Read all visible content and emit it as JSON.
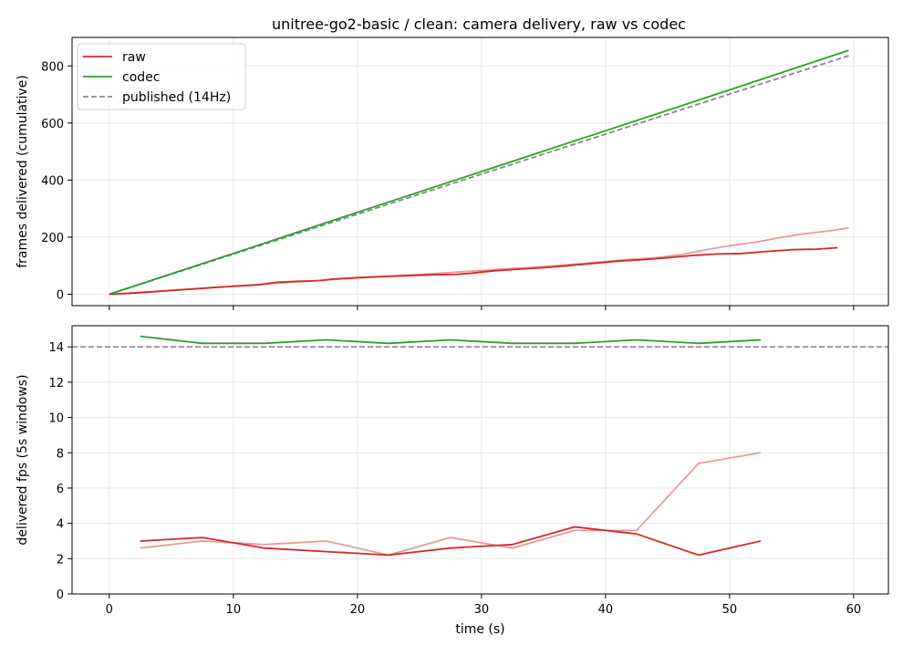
{
  "figure_title": "unitree-go2-basic / clean: camera delivery, raw vs codec",
  "colors": {
    "raw": "#d62728",
    "raw_light": "#e89a9a",
    "codec": "#2ca02c",
    "published": "#888888",
    "grid": "#e6e6e6"
  },
  "chart_data": [
    {
      "type": "line",
      "title": "unitree-go2-basic / clean: camera delivery, raw vs codec",
      "xlabel": "",
      "ylabel": "frames delivered (cumulative)",
      "xlim": [
        -3,
        62.8
      ],
      "ylim": [
        -40,
        900
      ],
      "xticks": [
        0,
        10,
        20,
        30,
        40,
        50,
        60
      ],
      "yticks": [
        0,
        200,
        400,
        600,
        800
      ],
      "grid": true,
      "legend": "top-left",
      "legend_entries": [
        {
          "label": "raw",
          "series": "raw"
        },
        {
          "label": "codec",
          "series": "codec"
        },
        {
          "label": "published (14Hz)",
          "series": "published"
        }
      ],
      "series": [
        {
          "name": "published (14Hz)",
          "key": "published",
          "style": "dashed",
          "x": [
            0,
            59.6
          ],
          "y": [
            0,
            836
          ]
        },
        {
          "name": "codec",
          "key": "codec",
          "style": "solid",
          "x": [
            0,
            10,
            20,
            30,
            40,
            50,
            59.6
          ],
          "y": [
            0,
            143,
            287,
            430,
            573,
            716,
            855
          ]
        },
        {
          "name": "",
          "key": "raw_light",
          "style": "solid",
          "x": [
            0,
            2,
            4,
            6,
            8,
            10,
            12,
            14,
            16,
            18,
            20,
            22,
            24,
            26,
            28,
            30,
            32,
            34,
            36,
            38,
            40,
            42,
            44,
            46,
            48,
            50,
            52,
            54,
            56,
            58,
            59.6
          ],
          "y": [
            0,
            5,
            11,
            17,
            23,
            28,
            34,
            40,
            45,
            51,
            57,
            62,
            67,
            72,
            78,
            83,
            89,
            94,
            100,
            107,
            115,
            122,
            128,
            138,
            155,
            170,
            182,
            198,
            212,
            222,
            232
          ]
        },
        {
          "name": "raw",
          "key": "raw",
          "style": "solid",
          "x": [
            0,
            2,
            4,
            6,
            8,
            10,
            12,
            13.5,
            15,
            17,
            18,
            20,
            22,
            24,
            26,
            28,
            29,
            31,
            33,
            35,
            37,
            39,
            41,
            43,
            45,
            47,
            49,
            51,
            53,
            55,
            57,
            58.7
          ],
          "y": [
            0,
            4,
            10,
            16,
            22,
            28,
            33,
            42,
            45,
            48,
            53,
            58,
            62,
            65,
            68,
            70,
            73,
            82,
            88,
            93,
            100,
            108,
            116,
            121,
            128,
            136,
            141,
            143,
            150,
            156,
            158,
            163
          ]
        }
      ]
    },
    {
      "type": "line",
      "title": "",
      "xlabel": "time (s)",
      "ylabel": "delivered fps (5s windows)",
      "xlim": [
        -3,
        62.8
      ],
      "ylim": [
        0,
        15.2
      ],
      "xticks": [
        0,
        10,
        20,
        30,
        40,
        50,
        60
      ],
      "yticks": [
        0,
        2,
        4,
        6,
        8,
        10,
        12,
        14
      ],
      "grid": true,
      "reference_line": {
        "key": "published",
        "y": 14,
        "style": "dashed"
      },
      "series": [
        {
          "name": "codec",
          "key": "codec",
          "style": "solid",
          "x": [
            2.5,
            7.5,
            12.5,
            17.5,
            22.5,
            27.5,
            32.5,
            37.5,
            42.5,
            47.5,
            52.5
          ],
          "y": [
            14.6,
            14.2,
            14.2,
            14.4,
            14.2,
            14.4,
            14.2,
            14.2,
            14.4,
            14.2,
            14.4
          ]
        },
        {
          "name": "",
          "key": "raw_light",
          "style": "solid",
          "x": [
            2.5,
            7.5,
            12.5,
            17.5,
            22.5,
            27.5,
            32.5,
            37.5,
            42.5,
            47.5,
            52.5
          ],
          "y": [
            2.6,
            3.0,
            2.8,
            3.0,
            2.2,
            3.2,
            2.6,
            3.6,
            3.6,
            7.4,
            8.0
          ]
        },
        {
          "name": "raw",
          "key": "raw",
          "style": "solid",
          "x": [
            2.5,
            7.5,
            12.5,
            17.5,
            22.5,
            27.5,
            32.5,
            37.5,
            42.5,
            47.5,
            52.5
          ],
          "y": [
            3.0,
            3.2,
            2.6,
            2.4,
            2.2,
            2.6,
            2.8,
            3.8,
            3.4,
            2.2,
            3.0
          ]
        }
      ]
    }
  ]
}
